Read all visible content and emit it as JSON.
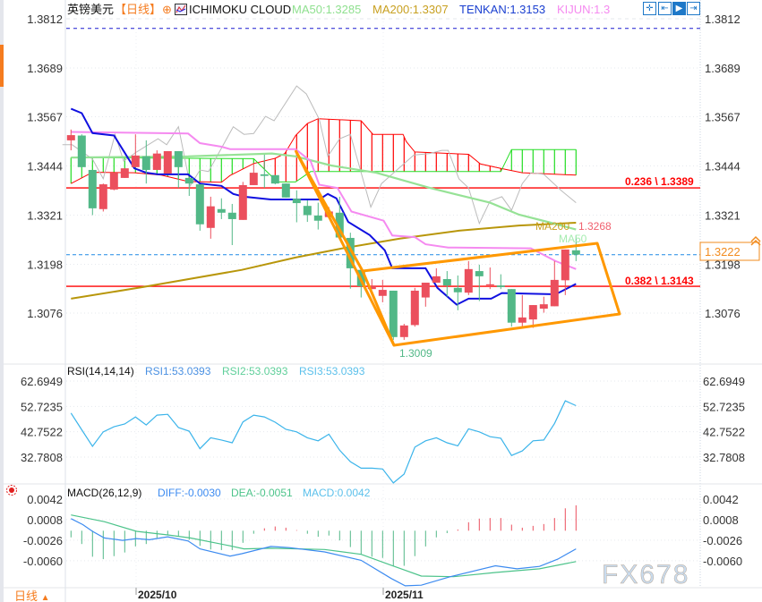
{
  "header": {
    "symbol": "英镑美元",
    "period": "【日线】",
    "indicator": "ICHIMOKU CLOUD",
    "ma50": "MA50:1.3285",
    "ma200": "MA200:1.3307",
    "tenkan": "TENKAN:1.3153",
    "kijun": "KIJUN:1.3"
  },
  "toolbar": {
    "icons": [
      "crosshair-icon",
      "fit-left-icon",
      "play-icon",
      "exit-icon"
    ]
  },
  "colors": {
    "up": "#eb4f5d",
    "down": "#52b887",
    "tenkan": "#1010e0",
    "kijun": "#f58af0",
    "ma50": "#96e296",
    "ma200": "#b8960a",
    "chikou": "#bbbbbb",
    "span_a": "#ff0000",
    "span_b": "#22dd22",
    "fib": "#ff0000",
    "channel": "#ff9800",
    "rsi": "#3bb4ea",
    "diff": "#3d8bf0",
    "dea": "#4cc38a"
  },
  "price_axis": {
    "ticks": [
      "1.3812",
      "1.3689",
      "1.3567",
      "1.3444",
      "1.3321",
      "1.3198",
      "1.3076"
    ],
    "current_price": "1.3222"
  },
  "annotations": {
    "fib_236": "0.236 \\ 1.3389",
    "fib_382": "0.382 \\ 1.3143",
    "low_label": "1.3009",
    "ma200_tag": "MA200",
    "price_tag": "1.3268",
    "ma50_tag": "MA50"
  },
  "chart_data": [
    {
      "type": "candlestick",
      "ylim": [
        1.299,
        1.3812
      ],
      "candles": [
        [
          1.3508,
          1.3535,
          1.3483,
          1.3521
        ],
        [
          1.352,
          1.3523,
          1.344,
          1.3441
        ],
        [
          1.3434,
          1.3434,
          1.3321,
          1.3338
        ],
        [
          1.3336,
          1.34,
          1.333,
          1.3398
        ],
        [
          1.3385,
          1.3427,
          1.3383,
          1.3427
        ],
        [
          1.3414,
          1.3438,
          1.3414,
          1.3438
        ],
        [
          1.3441,
          1.3523,
          1.3441,
          1.347
        ],
        [
          1.3468,
          1.3508,
          1.34,
          1.3434
        ],
        [
          1.3434,
          1.3483,
          1.3434,
          1.3475
        ],
        [
          1.3425,
          1.3481,
          1.3425,
          1.3481
        ],
        [
          1.3481,
          1.3481,
          1.3389,
          1.3441
        ],
        [
          1.3414,
          1.3414,
          1.3369,
          1.34
        ],
        [
          1.3398,
          1.3398,
          1.3282,
          1.3298
        ],
        [
          1.3289,
          1.3367,
          1.3262,
          1.3343
        ],
        [
          1.3336,
          1.3363,
          1.3311,
          1.3327
        ],
        [
          1.3327,
          1.3349,
          1.3246,
          1.3311
        ],
        [
          1.3309,
          1.3404,
          1.3309,
          1.3396
        ],
        [
          1.3396,
          1.345,
          1.3396,
          1.3427
        ],
        [
          1.3423,
          1.3472,
          1.3389,
          1.3419
        ],
        [
          1.3421,
          1.3421,
          1.3398,
          1.34
        ],
        [
          1.34,
          1.34,
          1.3365,
          1.3365
        ],
        [
          1.3362,
          1.3383,
          1.3303,
          1.3351
        ],
        [
          1.3344,
          1.3358,
          1.3304,
          1.3321
        ],
        [
          1.332,
          1.3352,
          1.3285,
          1.3307
        ],
        [
          1.3316,
          1.3341,
          1.3316,
          1.333
        ],
        [
          1.3327,
          1.3367,
          1.3265,
          1.3265
        ],
        [
          1.3264,
          1.3277,
          1.3137,
          1.3188
        ],
        [
          1.3184,
          1.3188,
          1.3115,
          1.3143
        ],
        [
          1.3136,
          1.3161,
          1.3136,
          1.3143
        ],
        [
          1.3119,
          1.3159,
          1.3103,
          1.3134
        ],
        [
          1.3132,
          1.3132,
          1.3009,
          1.3016
        ],
        [
          1.3016,
          1.3049,
          1.3009,
          1.3045
        ],
        [
          1.3046,
          1.3139,
          1.3042,
          1.3132
        ],
        [
          1.3115,
          1.3152,
          1.3092,
          1.3152
        ],
        [
          1.3152,
          1.3188,
          1.3152,
          1.3168
        ],
        [
          1.3161,
          1.3181,
          1.3117,
          1.3145
        ],
        [
          1.3139,
          1.317,
          1.3083,
          1.3128
        ],
        [
          1.3127,
          1.3206,
          1.3121,
          1.3186
        ],
        [
          1.3181,
          1.3197,
          1.3106,
          1.3168
        ],
        [
          1.3147,
          1.319,
          1.3136,
          1.3148
        ],
        [
          1.3145,
          1.3173,
          1.3136,
          1.3141
        ],
        [
          1.3136,
          1.3136,
          1.3042,
          1.3052
        ],
        [
          1.3052,
          1.3121,
          1.304,
          1.3065
        ],
        [
          1.306,
          1.3096,
          1.3039,
          1.3096
        ],
        [
          1.3087,
          1.3117,
          1.3077,
          1.3098
        ],
        [
          1.3093,
          1.3206,
          1.3093,
          1.3159
        ],
        [
          1.3158,
          1.3235,
          1.3121,
          1.3235
        ],
        [
          1.3233,
          1.3271,
          1.3206,
          1.3222
        ]
      ],
      "lines": {
        "tenkan": [
          [
            1,
            1.3587
          ],
          [
            2,
            1.3576
          ],
          [
            3,
            1.3526
          ],
          [
            5,
            1.352
          ],
          [
            6.9,
            1.3438
          ],
          [
            8,
            1.3427
          ],
          [
            9.1,
            1.3423
          ],
          [
            11.9,
            1.3423
          ],
          [
            13,
            1.34
          ],
          [
            15,
            1.3394
          ],
          [
            16.1,
            1.3374
          ],
          [
            17.1,
            1.3367
          ],
          [
            19.6,
            1.336
          ],
          [
            24.1,
            1.336
          ],
          [
            24.9,
            1.3374
          ],
          [
            25.7,
            1.3363
          ],
          [
            26.8,
            1.3304
          ],
          [
            28.8,
            1.3271
          ],
          [
            30.2,
            1.3233
          ],
          [
            30.9,
            1.3188
          ],
          [
            34,
            1.3188
          ],
          [
            35.1,
            1.3139
          ],
          [
            36.9,
            1.3097
          ],
          [
            38,
            1.3112
          ],
          [
            40.1,
            1.3112
          ],
          [
            41.1,
            1.3126
          ],
          [
            46.1,
            1.3123
          ],
          [
            48,
            1.3149
          ]
        ],
        "kijun": [
          [
            1,
            1.3529
          ],
          [
            11.9,
            1.3525
          ],
          [
            13,
            1.3501
          ],
          [
            15,
            1.3492
          ],
          [
            15.8,
            1.3486
          ],
          [
            21.9,
            1.3486
          ],
          [
            23.3,
            1.3456
          ],
          [
            24.1,
            1.3397
          ],
          [
            25.8,
            1.3389
          ],
          [
            27.1,
            1.333
          ],
          [
            30.1,
            1.3307
          ],
          [
            30.9,
            1.327
          ],
          [
            33,
            1.3266
          ],
          [
            34,
            1.3248
          ],
          [
            36.1,
            1.324
          ],
          [
            43.8,
            1.3238
          ],
          [
            46.1,
            1.3206
          ],
          [
            48,
            1.3186
          ]
        ],
        "ma50": [
          [
            1,
            1.3465
          ],
          [
            11.9,
            1.3468
          ],
          [
            19.7,
            1.3475
          ],
          [
            21.9,
            1.3468
          ],
          [
            25.2,
            1.3445
          ],
          [
            29.4,
            1.3427
          ],
          [
            34.4,
            1.3389
          ],
          [
            40,
            1.3352
          ],
          [
            42.7,
            1.3322
          ],
          [
            45.5,
            1.3303
          ],
          [
            48,
            1.3285
          ]
        ],
        "ma200": [
          [
            1,
            1.3112
          ],
          [
            7.7,
            1.3141
          ],
          [
            16.9,
            1.3184
          ],
          [
            21.9,
            1.3215
          ],
          [
            26.1,
            1.3237
          ],
          [
            31.6,
            1.3262
          ],
          [
            37.1,
            1.3282
          ],
          [
            42.7,
            1.3295
          ],
          [
            48,
            1.3302
          ]
        ],
        "chikou": [
          [
            0.2,
            1.3497
          ],
          [
            1.1,
            1.3497
          ],
          [
            3,
            1.3461
          ],
          [
            4,
            1.3412
          ],
          [
            5.1,
            1.3523
          ],
          [
            5.9,
            1.3456
          ],
          [
            7.1,
            1.3479
          ],
          [
            9.1,
            1.3512
          ],
          [
            9.9,
            1.3497
          ],
          [
            11,
            1.3542
          ],
          [
            12.1,
            1.3394
          ],
          [
            13,
            1.3434
          ],
          [
            13.8,
            1.343
          ],
          [
            16.1,
            1.3542
          ],
          [
            17.1,
            1.3523
          ],
          [
            18,
            1.3525
          ],
          [
            19.1,
            1.3568
          ],
          [
            19.9,
            1.3557
          ],
          [
            22,
            1.3644
          ],
          [
            22.9,
            1.3624
          ],
          [
            24.1,
            1.3561
          ],
          [
            24.9,
            1.3468
          ],
          [
            26,
            1.3512
          ],
          [
            27,
            1.3523
          ],
          [
            28.9,
            1.3341
          ],
          [
            29.9,
            1.34
          ],
          [
            32.9,
            1.3471
          ],
          [
            34.4,
            1.3475
          ],
          [
            35.5,
            1.3483
          ],
          [
            36.1,
            1.3483
          ],
          [
            37.1,
            1.3412
          ],
          [
            38,
            1.3389
          ],
          [
            39,
            1.33
          ],
          [
            40,
            1.3356
          ],
          [
            41.1,
            1.3367
          ],
          [
            42,
            1.3333
          ],
          [
            43,
            1.34
          ],
          [
            43.8,
            1.3427
          ],
          [
            45,
            1.3423
          ],
          [
            46.6,
            1.3383
          ],
          [
            48,
            1.3352
          ]
        ],
        "span_a": [
          [
            1,
            1.34
          ],
          [
            3,
            1.3428
          ],
          [
            6.9,
            1.3427
          ],
          [
            9.4,
            1.3421
          ],
          [
            11.9,
            1.3405
          ],
          [
            15,
            1.3403
          ],
          [
            15.8,
            1.342
          ],
          [
            18,
            1.345
          ],
          [
            20,
            1.3463
          ],
          [
            20.9,
            1.3475
          ],
          [
            21.9,
            1.352
          ],
          [
            23,
            1.355
          ],
          [
            24,
            1.3562
          ],
          [
            28,
            1.3557
          ],
          [
            29.1,
            1.3523
          ],
          [
            31.9,
            1.3523
          ],
          [
            32.2,
            1.3505
          ],
          [
            33,
            1.3479
          ],
          [
            38,
            1.3473
          ],
          [
            39.1,
            1.3449
          ],
          [
            41,
            1.3438
          ],
          [
            43,
            1.3427
          ],
          [
            48,
            1.3421
          ]
        ],
        "span_b": [
          [
            1,
            1.3465
          ],
          [
            18,
            1.3462
          ],
          [
            20.2,
            1.3404
          ],
          [
            21.9,
            1.3404
          ],
          [
            23.3,
            1.343
          ],
          [
            41,
            1.343
          ],
          [
            42,
            1.3485
          ],
          [
            48,
            1.3485
          ]
        ]
      },
      "fib_levels": [
        1.3389,
        1.3143
      ],
      "current_price": 1.3222,
      "top_dashed_level": 1.3788
    },
    {
      "type": "line",
      "title": "RSI(14,14,14)",
      "legend": [
        "RSI1:53.0393",
        "RSI2:53.0393",
        "RSI3:53.0393"
      ],
      "ticks": [
        "62.6949",
        "52.7235",
        "42.7522",
        "32.7808"
      ],
      "values": [
        50.1,
        43.5,
        37.0,
        42.7,
        44.7,
        45.8,
        48.6,
        45.4,
        49.3,
        49.6,
        44.4,
        43.0,
        36.1,
        40.4,
        39.5,
        38.4,
        46.6,
        49.3,
        48.6,
        46.5,
        43.7,
        42.7,
        40.4,
        39.2,
        41.8,
        35.5,
        31.0,
        28.4,
        28.4,
        28.1,
        22.6,
        26.1,
        36.7,
        39.2,
        40.4,
        38.4,
        37.2,
        43.9,
        42.7,
        40.8,
        40.2,
        33.4,
        35.2,
        39.2,
        39.5,
        46.0,
        54.9,
        53.0
      ]
    },
    {
      "type": "bar",
      "title": "MACD(26,12,9)",
      "legend": [
        "DIFF:-0.0030",
        "DEA:-0.0051",
        "MACD:0.0042"
      ],
      "ticks": [
        "0.0042",
        "0.0008",
        "-0.0026",
        "-0.0060"
      ],
      "histogram": [
        -0.0011,
        -0.0022,
        -0.0043,
        -0.0047,
        -0.0042,
        -0.0036,
        -0.0026,
        -0.0022,
        -0.0012,
        -0.0007,
        -0.001,
        -0.0015,
        -0.0025,
        -0.0031,
        -0.0032,
        -0.0032,
        -0.002,
        -0.0005,
        0.0004,
        0.0007,
        0.0005,
        0.0001,
        -0.0005,
        -0.001,
        -0.0008,
        -0.0016,
        -0.0027,
        -0.0039,
        -0.0043,
        -0.0045,
        -0.0059,
        -0.0058,
        -0.0042,
        -0.0026,
        -0.0011,
        -0.0004,
        0.0002,
        0.0014,
        0.002,
        0.0021,
        0.0021,
        0.001,
        0.0005,
        0.0008,
        0.0011,
        0.0021,
        0.0037,
        0.0042
      ],
      "diff": [
        [
          1,
          0.002
        ],
        [
          2.1,
          0.001
        ],
        [
          3,
          -0.0001
        ],
        [
          4.1,
          -0.0012
        ],
        [
          5.8,
          -0.0016
        ],
        [
          7.1,
          -0.0013
        ],
        [
          8.3,
          -0.0015
        ],
        [
          10,
          -0.001
        ],
        [
          11.9,
          -0.0017
        ],
        [
          13,
          -0.003
        ],
        [
          15.8,
          -0.0042
        ],
        [
          16.9,
          -0.0038
        ],
        [
          19.6,
          -0.0026
        ],
        [
          21.3,
          -0.0028
        ],
        [
          24.6,
          -0.0035
        ],
        [
          28,
          -0.0049
        ],
        [
          30.8,
          -0.0079
        ],
        [
          32.1,
          -0.0091
        ],
        [
          33.6,
          -0.009
        ],
        [
          36.3,
          -0.0076
        ],
        [
          40.5,
          -0.0058
        ],
        [
          42.5,
          -0.0063
        ],
        [
          44.6,
          -0.0059
        ],
        [
          46.3,
          -0.0047
        ],
        [
          48,
          -0.003
        ]
      ],
      "dea": [
        [
          1,
          0.0026
        ],
        [
          4.1,
          0.0015
        ],
        [
          7.1,
          -0.0001
        ],
        [
          10,
          -0.0007
        ],
        [
          12.1,
          -0.0012
        ],
        [
          15.8,
          -0.0025
        ],
        [
          17.1,
          -0.003
        ],
        [
          19.6,
          -0.0029
        ],
        [
          24.6,
          -0.0031
        ],
        [
          28,
          -0.0039
        ],
        [
          30.8,
          -0.0057
        ],
        [
          33.6,
          -0.0075
        ],
        [
          36.6,
          -0.0076
        ],
        [
          40.5,
          -0.0069
        ],
        [
          44.6,
          -0.0063
        ],
        [
          48,
          -0.0051
        ]
      ]
    }
  ],
  "time_axis": {
    "labels": [
      "2025/10",
      "2025/11"
    ]
  },
  "footer": {
    "period": "日线",
    "period_arrow": "▲",
    "watermark": "FX678"
  }
}
